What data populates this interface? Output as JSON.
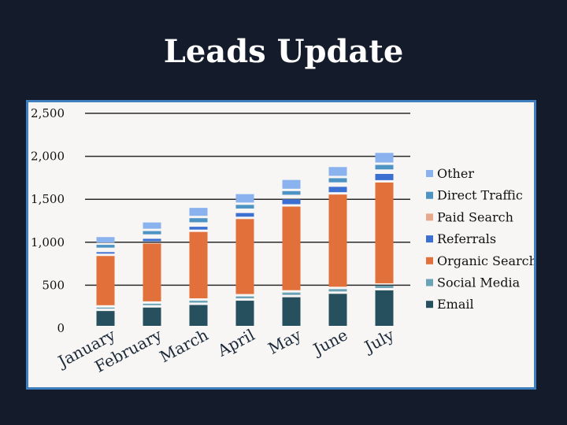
{
  "title": "Leads Update",
  "chart_data": {
    "type": "bar",
    "stacked": true,
    "title": "",
    "xlabel": "",
    "ylabel": "",
    "ylim": [
      0,
      2500
    ],
    "yticks": [
      0,
      500,
      1000,
      1500,
      2000,
      2500
    ],
    "ytick_labels": [
      "0",
      "500",
      "1,000",
      "1,500",
      "2,000",
      "2,500"
    ],
    "categories": [
      "January",
      "February",
      "March",
      "April",
      "May",
      "June",
      "July"
    ],
    "legend_position": "right",
    "grid": true,
    "series": [
      {
        "name": "Email",
        "color": "#27505f",
        "values": [
          200,
          240,
          270,
          320,
          360,
          400,
          440
        ]
      },
      {
        "name": "Social Media",
        "color": "#6aa3b6",
        "values": [
          40,
          45,
          50,
          50,
          55,
          55,
          55
        ]
      },
      {
        "name": "Organic Search",
        "color": "#e2703a",
        "values": [
          600,
          700,
          800,
          900,
          1000,
          1100,
          1200
        ]
      },
      {
        "name": "Referrals",
        "color": "#3b6fd1",
        "values": [
          45,
          55,
          60,
          70,
          85,
          90,
          100
        ]
      },
      {
        "name": "Paid Search",
        "color": "#e8a88c",
        "values": [
          25,
          25,
          25,
          25,
          25,
          25,
          25
        ]
      },
      {
        "name": "Direct Traffic",
        "color": "#4d93c4",
        "values": [
          60,
          65,
          75,
          70,
          70,
          75,
          80
        ]
      },
      {
        "name": "Other",
        "color": "#8ab2ee",
        "values": [
          90,
          100,
          120,
          125,
          130,
          130,
          140
        ]
      }
    ]
  }
}
